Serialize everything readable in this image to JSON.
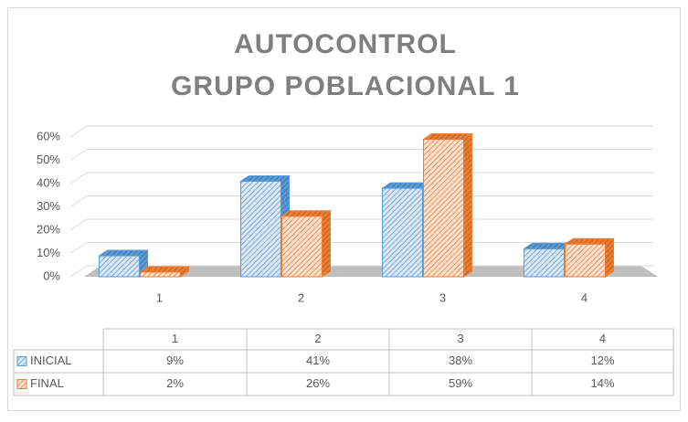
{
  "chart_data": {
    "type": "bar3d",
    "title": [
      "AUTOCONTROL",
      "GRUPO POBLACIONAL 1"
    ],
    "categories": [
      "1",
      "2",
      "3",
      "4"
    ],
    "series": [
      {
        "name": "INICIAL",
        "color": "#5b9bd5",
        "values": [
          9,
          41,
          38,
          12
        ],
        "value_labels": [
          "9%",
          "41%",
          "38%",
          "12%"
        ]
      },
      {
        "name": "FINAL",
        "color": "#ed7d31",
        "values": [
          2,
          26,
          59,
          14
        ],
        "value_labels": [
          "2%",
          "26%",
          "59%",
          "14%"
        ]
      }
    ],
    "ylim": [
      0,
      60
    ],
    "yticks": [
      {
        "value": 0,
        "label": "0%"
      },
      {
        "value": 10,
        "label": "10%"
      },
      {
        "value": 20,
        "label": "20%"
      },
      {
        "value": 30,
        "label": "30%"
      },
      {
        "value": 40,
        "label": "40%"
      },
      {
        "value": 50,
        "label": "50%"
      },
      {
        "value": 60,
        "label": "60%"
      }
    ],
    "grid": true,
    "data_table": true
  }
}
